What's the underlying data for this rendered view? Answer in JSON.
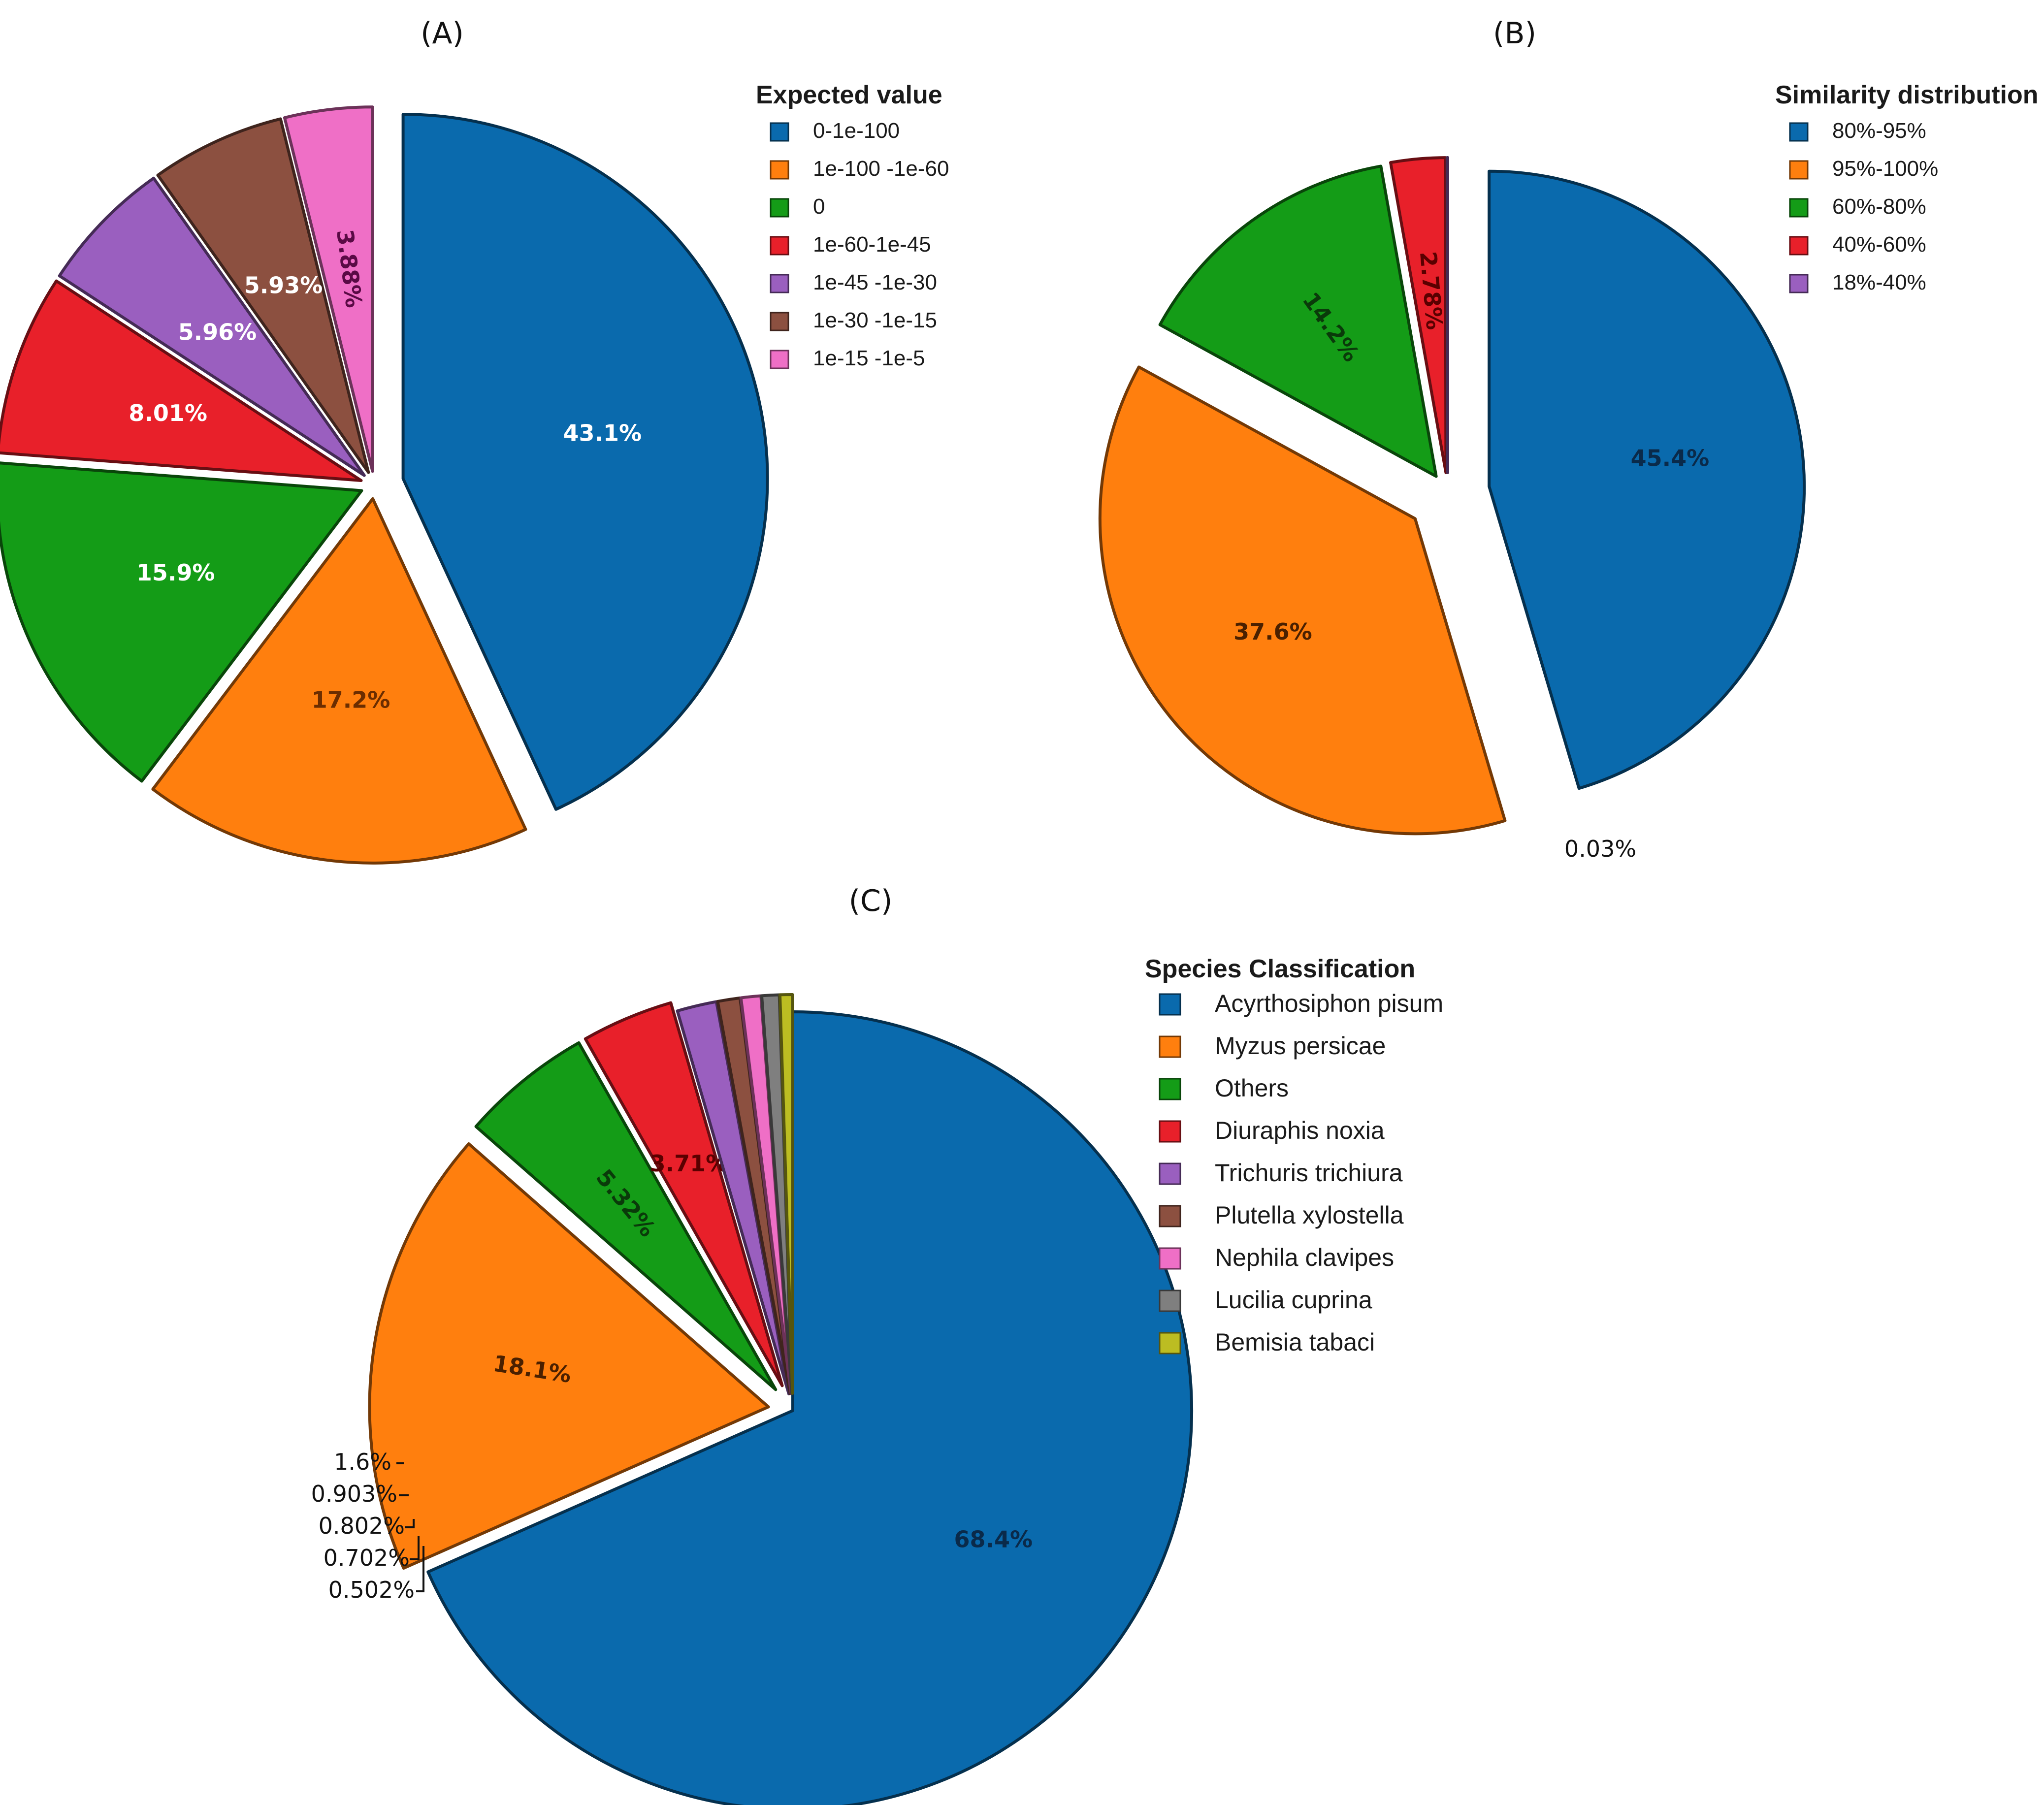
{
  "chart_data": [
    {
      "type": "pie",
      "title": "(A)",
      "legend_title": "Expected value",
      "categories": [
        "0-1e-100",
        "1e-100 -1e-60",
        "0",
        "1e-60-1e-45",
        "1e-45 -1e-30",
        "1e-30 -1e-15",
        "1e-15 -1e-5"
      ],
      "values": [
        43.1,
        17.2,
        15.9,
        8.01,
        5.96,
        5.93,
        3.88
      ],
      "labels": [
        "43.1%",
        "17.2%",
        "15.9%",
        "8.01%",
        "5.96%",
        "5.93%",
        "3.88%"
      ],
      "colors": [
        "#0a6aad",
        "#ff7f0e",
        "#149c17",
        "#e8202a",
        "#9a5fbf",
        "#8c5040",
        "#ef6fc6"
      ],
      "label_colors": [
        "#ffffff",
        "#6b2d00",
        "#ffffff",
        "#ffffff",
        "#ffffff",
        "#ffffff",
        "#5a0a45"
      ],
      "legend_position": "right"
    },
    {
      "type": "pie",
      "title": "(B)",
      "legend_title": "Similarity distribution",
      "categories": [
        "80%-95%",
        "95%-100%",
        "60%-80%",
        "40%-60%",
        "18%-40%"
      ],
      "values": [
        45.4,
        37.6,
        14.2,
        2.78,
        0.03
      ],
      "labels": [
        "45.4%",
        "37.6%",
        "14.2%",
        "2.78%",
        "0.03%"
      ],
      "colors": [
        "#0a6aad",
        "#ff7f0e",
        "#149c17",
        "#e8202a",
        "#9a5fbf"
      ],
      "label_colors": [
        "#0a2a4a",
        "#4a2000",
        "#0a3a0a",
        "#5a0000",
        "#111111"
      ],
      "legend_position": "top-right"
    },
    {
      "type": "pie",
      "title": "(C)",
      "legend_title": "Species Classification",
      "categories": [
        "Acyrthosiphon pisum",
        "Myzus persicae",
        "Others",
        "Diuraphis noxia",
        "Trichuris trichiura",
        "Plutella xylostella",
        "Nephila clavipes",
        "Lucilia cuprina",
        "Bemisia tabaci"
      ],
      "values": [
        68.4,
        18.1,
        5.32,
        3.71,
        1.6,
        0.903,
        0.802,
        0.702,
        0.502
      ],
      "labels": [
        "68.4%",
        "18.1%",
        "5.32%",
        "3.71%",
        "1.6%",
        "0.903%",
        "0.802%",
        "0.702%",
        "0.502%"
      ],
      "colors": [
        "#0a6aad",
        "#ff7f0e",
        "#149c17",
        "#e8202a",
        "#9a5fbf",
        "#8c5040",
        "#ef6fc6",
        "#7f7f7f",
        "#bcbd22"
      ],
      "label_colors": [
        "#0a2a4a",
        "#4a2000",
        "#0a3a0a",
        "#5a0000",
        "#111111",
        "#111111",
        "#111111",
        "#111111",
        "#111111"
      ],
      "legend_position": "right"
    }
  ]
}
